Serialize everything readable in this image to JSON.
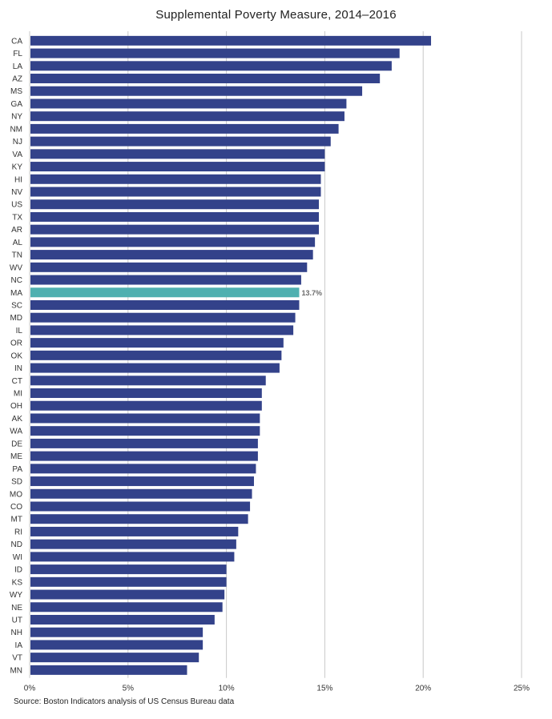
{
  "chart_data": {
    "type": "bar",
    "orientation": "horizontal",
    "title": "Supplemental Poverty Measure, 2014–2016",
    "source": "Source: Boston Indicators analysis of US Census Bureau data",
    "categories": [
      "CA",
      "FL",
      "LA",
      "AZ",
      "MS",
      "GA",
      "NY",
      "NM",
      "NJ",
      "VA",
      "KY",
      "HI",
      "NV",
      "US",
      "TX",
      "AR",
      "AL",
      "TN",
      "WV",
      "NC",
      "MA",
      "SC",
      "MD",
      "IL",
      "OR",
      "OK",
      "IN",
      "CT",
      "MI",
      "OH",
      "AK",
      "WA",
      "DE",
      "ME",
      "PA",
      "SD",
      "MO",
      "CO",
      "MT",
      "RI",
      "ND",
      "WI",
      "ID",
      "KS",
      "WY",
      "NE",
      "UT",
      "NH",
      "IA",
      "VT",
      "MN"
    ],
    "values": [
      20.4,
      18.8,
      18.4,
      17.8,
      16.9,
      16.1,
      16.0,
      15.7,
      15.3,
      15.0,
      15.0,
      14.8,
      14.8,
      14.7,
      14.7,
      14.7,
      14.5,
      14.4,
      14.1,
      13.8,
      13.7,
      13.7,
      13.5,
      13.4,
      12.9,
      12.8,
      12.7,
      12.0,
      11.8,
      11.8,
      11.7,
      11.7,
      11.6,
      11.6,
      11.5,
      11.4,
      11.3,
      11.2,
      11.1,
      10.6,
      10.5,
      10.4,
      10.0,
      10.0,
      9.9,
      9.8,
      9.4,
      8.8,
      8.8,
      8.6,
      8.0
    ],
    "highlight": {
      "category": "MA",
      "label": "13.7%"
    },
    "xlim": [
      0,
      25
    ],
    "xticks": [
      0,
      5,
      10,
      15,
      20,
      25
    ],
    "xtick_labels": [
      "0%",
      "5%",
      "10%",
      "15%",
      "20%",
      "25%"
    ],
    "xlabel": "",
    "ylabel": "",
    "grid": true,
    "colors": {
      "bar": "#33428a",
      "highlight": "#4fb0b0",
      "grid": "#c8c8c8",
      "label": "#6b6b6b",
      "text": "#333333"
    }
  }
}
